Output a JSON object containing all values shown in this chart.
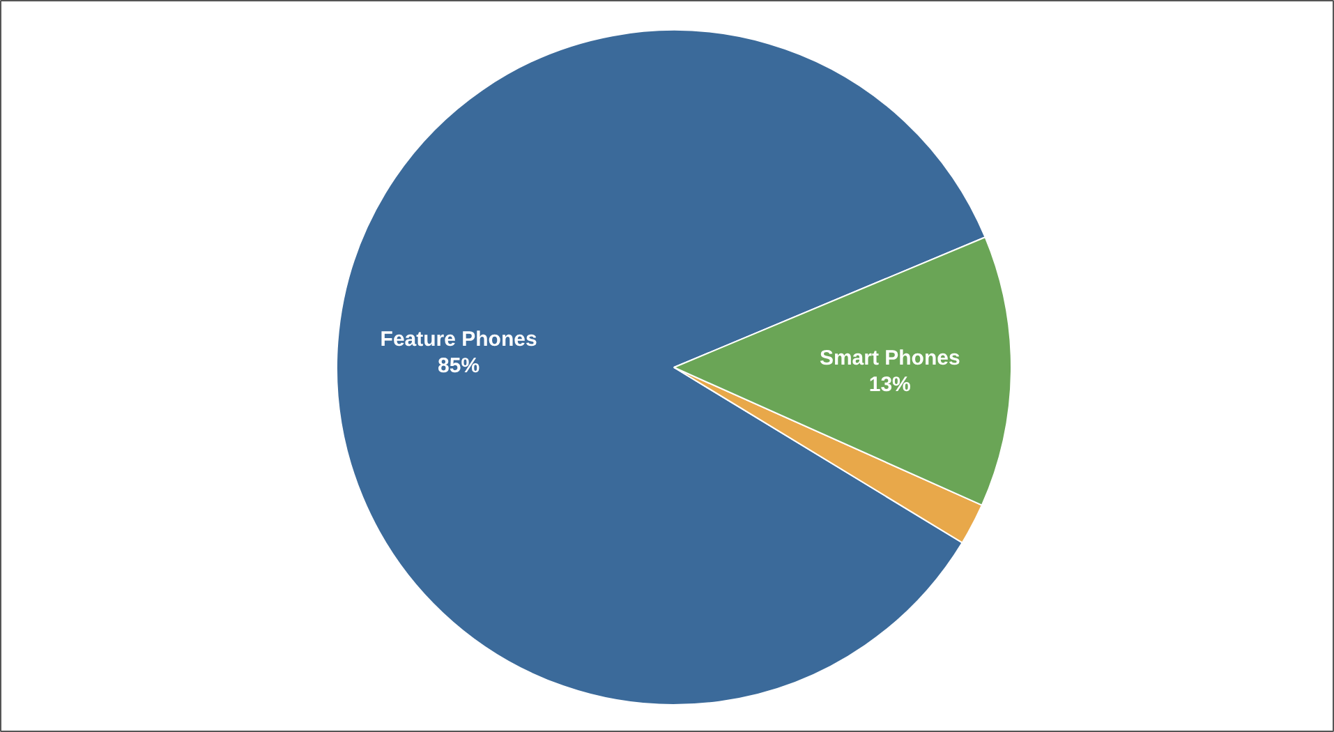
{
  "chart_data": {
    "type": "pie",
    "categories": [
      "Feature Phones",
      null,
      "Smart Phones"
    ],
    "values": [
      85,
      2,
      13
    ],
    "colors": [
      "#3b6a9a",
      "#e8a84a",
      "#6aa556"
    ],
    "value_labels": [
      "85%",
      null,
      "13%"
    ]
  }
}
